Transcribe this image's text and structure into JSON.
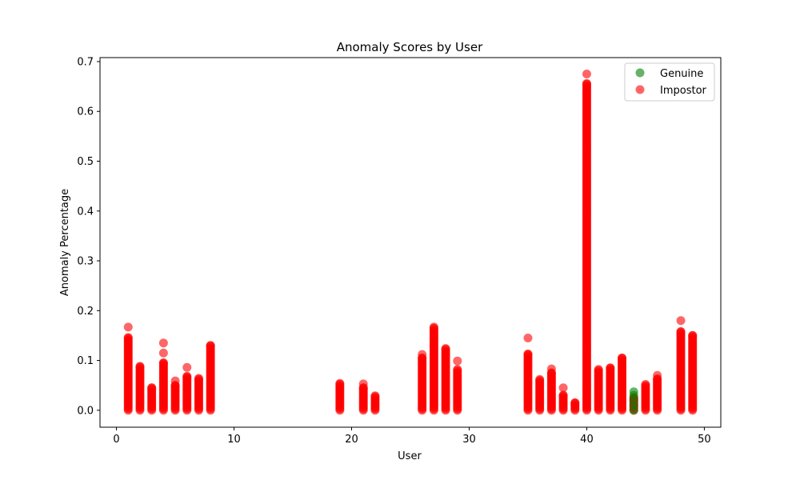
{
  "chart_data": {
    "type": "scatter",
    "title": "Anomaly Scores by User",
    "xlabel": "User",
    "ylabel": "Anomaly Percentage",
    "xlim": [
      -1.4,
      51.4
    ],
    "ylim": [
      -0.034,
      0.708
    ],
    "xticks": [
      0,
      10,
      20,
      30,
      40,
      50
    ],
    "xtick_labels": [
      "0",
      "10",
      "20",
      "30",
      "40",
      "50"
    ],
    "yticks": [
      0.0,
      0.1,
      0.2,
      0.3,
      0.4,
      0.5,
      0.6,
      0.7
    ],
    "ytick_labels": [
      "0.0",
      "0.1",
      "0.2",
      "0.3",
      "0.4",
      "0.5",
      "0.6",
      "0.7"
    ],
    "grid": false,
    "legend_position": "top-right",
    "series": [
      {
        "name": "Genuine",
        "color": "#008000",
        "points": [
          {
            "user": 44,
            "score": 0.0
          },
          {
            "user": 44,
            "score": 0.01
          },
          {
            "user": 44,
            "score": 0.02
          },
          {
            "user": 44,
            "score": 0.03
          },
          {
            "user": 44,
            "score": 0.037
          }
        ]
      },
      {
        "name": "Impostor",
        "color": "#ff0000",
        "users": [
          {
            "user": 1,
            "max": 0.146,
            "outliers": [
              0.167
            ]
          },
          {
            "user": 2,
            "max": 0.088,
            "outliers": []
          },
          {
            "user": 3,
            "max": 0.045,
            "outliers": []
          },
          {
            "user": 4,
            "max": 0.095,
            "outliers": [
              0.115,
              0.135
            ]
          },
          {
            "user": 5,
            "max": 0.05,
            "outliers": [
              0.059
            ]
          },
          {
            "user": 6,
            "max": 0.068,
            "outliers": [
              0.086
            ]
          },
          {
            "user": 7,
            "max": 0.064,
            "outliers": []
          },
          {
            "user": 8,
            "max": 0.13,
            "outliers": []
          },
          {
            "user": 19,
            "max": 0.054,
            "outliers": []
          },
          {
            "user": 21,
            "max": 0.045,
            "outliers": [
              0.053
            ]
          },
          {
            "user": 22,
            "max": 0.029,
            "outliers": []
          },
          {
            "user": 26,
            "max": 0.105,
            "outliers": [
              0.112
            ]
          },
          {
            "user": 27,
            "max": 0.167,
            "outliers": []
          },
          {
            "user": 28,
            "max": 0.124,
            "outliers": []
          },
          {
            "user": 29,
            "max": 0.082,
            "outliers": [
              0.099
            ]
          },
          {
            "user": 35,
            "max": 0.113,
            "outliers": [
              0.145
            ]
          },
          {
            "user": 36,
            "max": 0.062,
            "outliers": []
          },
          {
            "user": 37,
            "max": 0.075,
            "outliers": [
              0.083
            ]
          },
          {
            "user": 38,
            "max": 0.03,
            "outliers": [
              0.045
            ]
          },
          {
            "user": 39,
            "max": 0.015,
            "outliers": []
          },
          {
            "user": 40,
            "max": 0.656,
            "outliers": [
              0.675
            ]
          },
          {
            "user": 41,
            "max": 0.082,
            "outliers": []
          },
          {
            "user": 42,
            "max": 0.085,
            "outliers": []
          },
          {
            "user": 43,
            "max": 0.105,
            "outliers": []
          },
          {
            "user": 44,
            "max": 0.025,
            "outliers": []
          },
          {
            "user": 45,
            "max": 0.052,
            "outliers": []
          },
          {
            "user": 46,
            "max": 0.063,
            "outliers": [
              0.07
            ]
          },
          {
            "user": 48,
            "max": 0.158,
            "outliers": [
              0.18
            ]
          },
          {
            "user": 49,
            "max": 0.15,
            "outliers": []
          }
        ]
      }
    ]
  }
}
